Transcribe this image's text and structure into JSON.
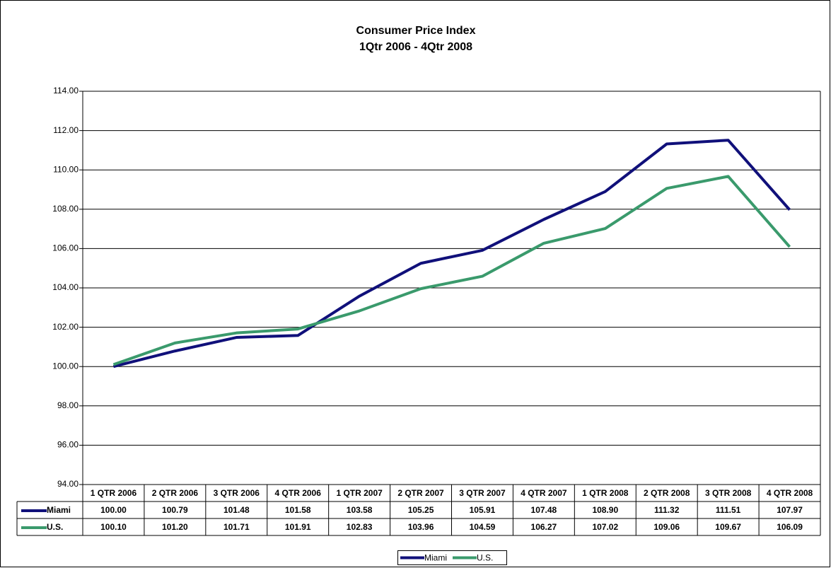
{
  "chart_data": {
    "type": "line",
    "title": "Consumer Price Index",
    "subtitle": "1Qtr 2006 - 4Qtr 2008",
    "categories": [
      "1 QTR 2006",
      "2 QTR 2006",
      "3 QTR 2006",
      "4 QTR 2006",
      "1 QTR 2007",
      "2 QTR 2007",
      "3 QTR 2007",
      "4 QTR 2007",
      "1 QTR 2008",
      "2 QTR 2008",
      "3 QTR 2008",
      "4 QTR 2008"
    ],
    "series": [
      {
        "name": "Miami",
        "color": "#10107a",
        "values": [
          100.0,
          100.79,
          101.48,
          101.58,
          103.58,
          105.25,
          105.91,
          107.48,
          108.9,
          111.32,
          111.51,
          107.97
        ],
        "value_labels": [
          "100.00",
          "100.79",
          "101.48",
          "101.58",
          "103.58",
          "105.25",
          "105.91",
          "107.48",
          "108.90",
          "111.32",
          "111.51",
          "107.97"
        ]
      },
      {
        "name": "U.S.",
        "color": "#3a9a6c",
        "values": [
          100.1,
          101.2,
          101.71,
          101.91,
          102.83,
          103.96,
          104.59,
          106.27,
          107.02,
          109.06,
          109.67,
          106.09
        ],
        "value_labels": [
          "100.10",
          "101.20",
          "101.71",
          "101.91",
          "102.83",
          "103.96",
          "104.59",
          "106.27",
          "107.02",
          "109.06",
          "109.67",
          "106.09"
        ]
      }
    ],
    "ylim": [
      94,
      114
    ],
    "yticks": [
      {
        "value": 94,
        "label": "94.00"
      },
      {
        "value": 96,
        "label": "96.00"
      },
      {
        "value": 98,
        "label": "98.00"
      },
      {
        "value": 100,
        "label": "100.00"
      },
      {
        "value": 102,
        "label": "102.00"
      },
      {
        "value": 104,
        "label": "104.00"
      },
      {
        "value": 106,
        "label": "106.00"
      },
      {
        "value": 108,
        "label": "108.00"
      },
      {
        "value": 110,
        "label": "110.00"
      },
      {
        "value": 112,
        "label": "112.00"
      },
      {
        "value": 114,
        "label": "114.00"
      }
    ],
    "grid": true,
    "legend": "bottom"
  }
}
